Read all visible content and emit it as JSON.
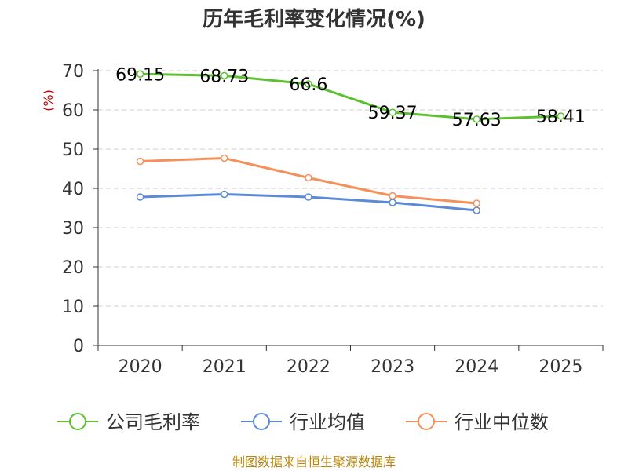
{
  "chart_data": {
    "type": "line",
    "title": "历年毛利率变化情况(%)",
    "ylabel": "(%)",
    "xlabel": "",
    "categories": [
      "2020",
      "2021",
      "2022",
      "2023",
      "2024",
      "2025"
    ],
    "ylim": [
      0,
      70
    ],
    "yticks": [
      0,
      10,
      20,
      30,
      40,
      50,
      60,
      70
    ],
    "grid": true,
    "legend_position": "bottom",
    "series": [
      {
        "name": "公司毛利率",
        "color": "#5cc12f",
        "values": [
          69.15,
          68.73,
          66.6,
          59.37,
          57.63,
          58.41
        ],
        "labels": [
          "69.15",
          "68.73",
          "66.6",
          "59.37",
          "57.63",
          "58.41"
        ]
      },
      {
        "name": "行业均值",
        "color": "#5b8ad8",
        "values": [
          37.8,
          38.5,
          37.8,
          36.4,
          34.4,
          null
        ]
      },
      {
        "name": "行业中位数",
        "color": "#f4905a",
        "values": [
          46.9,
          47.7,
          42.7,
          38.1,
          36.2,
          null
        ]
      }
    ],
    "source": "制图数据来自恒生聚源数据库"
  }
}
